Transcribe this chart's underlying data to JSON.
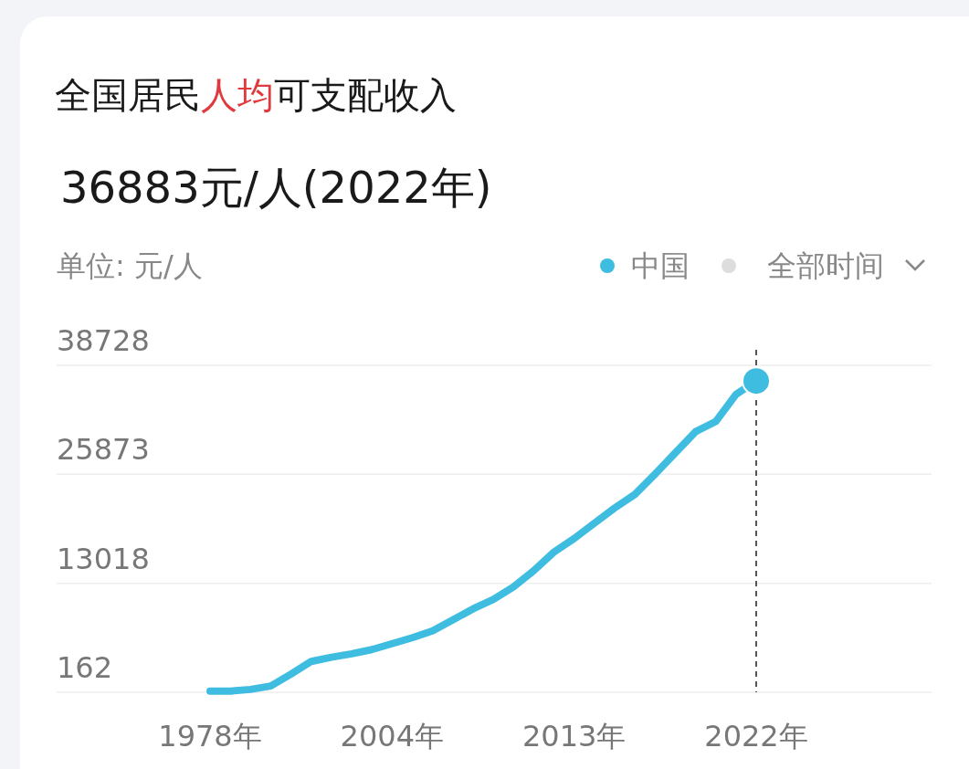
{
  "chart_data": {
    "type": "line",
    "title": "全国居民人均可支配收入",
    "subtitle": "36883元/人(2022年)",
    "annotations": [
      "单位: 元/人",
      "全部时间"
    ],
    "categories": [
      "1978年",
      null,
      null,
      null,
      null,
      null,
      null,
      null,
      null,
      "2004年",
      null,
      null,
      null,
      null,
      null,
      null,
      null,
      null,
      "2013年",
      null,
      null,
      null,
      null,
      null,
      null,
      null,
      null,
      "2022年"
    ],
    "series": [
      {
        "name": "中国",
        "color": "#3fbde0",
        "values": [
          300,
          300,
          500,
          900,
          2300,
          3800,
          4300,
          4700,
          5200,
          5900,
          6600,
          7400,
          8700,
          10000,
          11100,
          12600,
          14500,
          16700,
          18300,
          20100,
          21900,
          23500,
          25900,
          28400,
          30900,
          32100,
          35300,
          36883
        ]
      }
    ],
    "ylim": [
      162,
      38728
    ],
    "yticks": [
      162,
      13018,
      25873,
      38728
    ],
    "grid": "y",
    "legend": "top right",
    "ref_lines": [
      {
        "axis": "x",
        "value": "2022年",
        "line_style": "dashed",
        "color": "#555555"
      }
    ]
  }
}
